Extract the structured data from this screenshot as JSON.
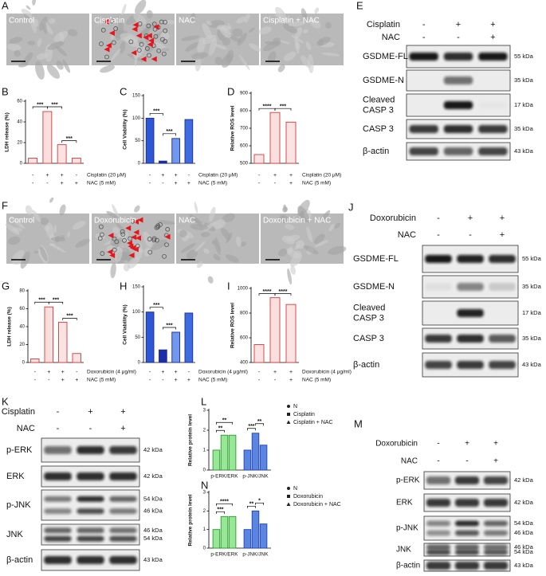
{
  "micrographs": [
    {
      "letter": "A",
      "images": [
        "Control",
        "Cisplatin",
        "NAC",
        "Cisplatin + NAC"
      ]
    },
    {
      "letter": "F",
      "images": [
        "Control",
        "Doxorubicin",
        "NAC",
        "Doxorubicin + NAC"
      ]
    }
  ],
  "charts": [
    {
      "letter": "B",
      "type": "bar",
      "y_label": "LDH release (%)",
      "values": [
        5,
        50,
        18,
        5
      ],
      "colors": [
        "#fbe3e3",
        "#fbdede",
        "#fbe3e3",
        "#fbe3e3"
      ],
      "edge": "#d43a3a",
      "ylim": [
        0,
        60
      ],
      "yticks": [
        0,
        20,
        40,
        60
      ],
      "significance": [
        "***",
        "***",
        "***"
      ],
      "conditions": [
        {
          "label": "Cisplatin (20 μM)",
          "signs": [
            "-",
            "+",
            "+",
            "-"
          ]
        },
        {
          "label": "NAC (5 mM)",
          "signs": [
            "-",
            "-",
            "+",
            "+"
          ]
        }
      ]
    },
    {
      "letter": "C",
      "type": "bar",
      "y_label": "Cell Viability (%)",
      "values": [
        100,
        5,
        55,
        97
      ],
      "colors": [
        "#2e57d6",
        "#1c2fa8",
        "#7098ef",
        "#3d6ce0"
      ],
      "edge": "#1a2a90",
      "ylim": [
        0,
        150
      ],
      "yticks": [
        0,
        50,
        100,
        150
      ],
      "significance": [
        "***",
        "***"
      ],
      "conditions": [
        {
          "label": "Cisplatin (20 μM)",
          "signs": [
            "-",
            "+",
            "+",
            "-"
          ]
        },
        {
          "label": "NAC (5 mM)",
          "signs": [
            "-",
            "-",
            "+",
            "+"
          ]
        }
      ]
    },
    {
      "letter": "D",
      "type": "bar",
      "y_label": "Relative ROS level",
      "values": [
        550,
        790,
        735
      ],
      "colors": [
        "#fbe3e3",
        "#fbdede",
        "#fbe3e3"
      ],
      "edge": "#d43a3a",
      "ylim": [
        500,
        900
      ],
      "yticks": [
        500,
        600,
        700,
        800,
        900
      ],
      "significance": [
        "****",
        "***"
      ],
      "conditions": [
        {
          "label": "Cisplatin (20 μM)",
          "signs": [
            "-",
            "+",
            "+"
          ]
        },
        {
          "label": "NAC (5 mM)",
          "signs": [
            "-",
            "-",
            "+"
          ]
        }
      ]
    },
    {
      "letter": "G",
      "type": "bar",
      "y_label": "LDH release (%)",
      "values": [
        4,
        62,
        45,
        10
      ],
      "colors": [
        "#fbe3e3",
        "#fbdede",
        "#fbe3e3",
        "#fbe3e3"
      ],
      "edge": "#d43a3a",
      "ylim": [
        0,
        80
      ],
      "yticks": [
        0,
        20,
        40,
        60,
        80
      ],
      "significance": [
        "***",
        "***",
        "***"
      ],
      "conditions": [
        {
          "label": "Doxorubicin (4 μg/ml)",
          "signs": [
            "-",
            "+",
            "+",
            "-"
          ]
        },
        {
          "label": "NAC (5 mM)",
          "signs": [
            "-",
            "-",
            "+",
            "+"
          ]
        }
      ]
    },
    {
      "letter": "H",
      "type": "bar",
      "y_label": "Cell Viability (%)",
      "values": [
        100,
        25,
        60,
        98
      ],
      "colors": [
        "#2e57d6",
        "#1c2fa8",
        "#7098ef",
        "#3d6ce0"
      ],
      "edge": "#1a2a90",
      "ylim": [
        0,
        150
      ],
      "yticks": [
        0,
        50,
        100,
        150
      ],
      "significance": [
        "***",
        "***"
      ],
      "conditions": [
        {
          "label": "Doxorubicin (4 μg/ml)",
          "signs": [
            "-",
            "+",
            "+",
            "-"
          ]
        },
        {
          "label": "NAC (5 mM)",
          "signs": [
            "-",
            "-",
            "+",
            "+"
          ]
        }
      ]
    },
    {
      "letter": "I",
      "type": "bar",
      "y_label": "Relative ROS level",
      "values": [
        545,
        925,
        870
      ],
      "colors": [
        "#fbe3e3",
        "#fbdede",
        "#fbe3e3"
      ],
      "edge": "#d43a3a",
      "ylim": [
        400,
        1000
      ],
      "yticks": [
        400,
        600,
        800,
        1000
      ],
      "significance": [
        "****",
        "****"
      ],
      "conditions": [
        {
          "label": "Doxorubicin (4 μg/ml)",
          "signs": [
            "-",
            "+",
            "+"
          ]
        },
        {
          "label": "NAC (5 mM)",
          "signs": [
            "-",
            "-",
            "+"
          ]
        }
      ]
    },
    {
      "letter": "L",
      "type": "grouped-bar",
      "y_label": "Relative protein level",
      "categories": [
        "p-ERK/ERK",
        "p-JNK/JNK"
      ],
      "colors": [
        "#98e698",
        "#5b86e0"
      ],
      "edges": [
        "#2c9a2c",
        "#1f3fbf"
      ],
      "series": [
        {
          "name": "N",
          "values": [
            1,
            1
          ]
        },
        {
          "name": "Cisplatin",
          "values": [
            1.75,
            1.85
          ]
        },
        {
          "name": "Cisplatin + NAC",
          "values": [
            1.75,
            1.25
          ]
        }
      ],
      "ylim": [
        0,
        3
      ],
      "yticks": [
        0,
        1,
        2,
        3
      ],
      "significance": [
        "**",
        "**",
        "***",
        "**"
      ]
    },
    {
      "letter": "N",
      "type": "grouped-bar",
      "y_label": "Relative protein level",
      "categories": [
        "p-ERK/ERK",
        "p-JNK/JNK"
      ],
      "colors": [
        "#98e698",
        "#5b86e0"
      ],
      "edges": [
        "#2c9a2c",
        "#1f3fbf"
      ],
      "series": [
        {
          "name": "N",
          "values": [
            1,
            1
          ]
        },
        {
          "name": "Doxorubicin",
          "values": [
            1.7,
            2.0
          ]
        },
        {
          "name": "Doxorubicin + NAC",
          "values": [
            1.7,
            1.3
          ]
        }
      ],
      "ylim": [
        0,
        3
      ],
      "yticks": [
        0,
        1,
        2,
        3
      ],
      "significance": [
        "***",
        "****",
        "**",
        "*"
      ]
    }
  ],
  "blots": [
    {
      "letter": "E",
      "treatments": [
        {
          "name": "Cisplatin",
          "signs": [
            "-",
            "+",
            "+"
          ]
        },
        {
          "name": "NAC",
          "signs": [
            "-",
            "-",
            "+"
          ]
        }
      ],
      "rows": [
        {
          "name": [
            "GSDME-FL"
          ],
          "markers": [
            "55 kDa"
          ]
        },
        {
          "name": [
            "GSDME-N"
          ],
          "markers": [
            "35 kDa"
          ]
        },
        {
          "name": [
            "Cleaved",
            "CASP 3"
          ],
          "markers": [
            "17 kDa"
          ]
        },
        {
          "name": [
            "CASP 3"
          ],
          "markers": [
            "35 kDa"
          ]
        },
        {
          "name": [
            "β-actin"
          ],
          "markers": [
            "43 kDa"
          ]
        }
      ]
    },
    {
      "letter": "J",
      "treatments": [
        {
          "name": "Doxorubicin",
          "signs": [
            "-",
            "+",
            "+"
          ]
        },
        {
          "name": "NAC",
          "signs": [
            "-",
            "-",
            "+"
          ]
        }
      ],
      "rows": [
        {
          "name": [
            "GSDME-FL"
          ],
          "markers": [
            "55 kDa"
          ]
        },
        {
          "name": [
            "GSDME-N"
          ],
          "markers": [
            "35 kDa"
          ]
        },
        {
          "name": [
            "Cleaved",
            "CASP 3"
          ],
          "markers": [
            "17 kDa"
          ]
        },
        {
          "name": [
            "CASP 3"
          ],
          "markers": [
            "35 kDa"
          ]
        },
        {
          "name": [
            "β-actin"
          ],
          "markers": [
            "43 kDa"
          ]
        }
      ]
    },
    {
      "letter": "K",
      "treatments": [
        {
          "name": "Cisplatin",
          "signs": [
            "-",
            "+",
            "+"
          ]
        },
        {
          "name": "NAC",
          "signs": [
            "-",
            "-",
            "+"
          ]
        }
      ],
      "rows": [
        {
          "name": [
            "p-ERK"
          ],
          "markers": [
            "42 kDa"
          ]
        },
        {
          "name": [
            "ERK"
          ],
          "markers": [
            "42 kDa"
          ]
        },
        {
          "name": [
            "p-JNK"
          ],
          "markers": [
            "54 kDa",
            "46 kDa"
          ]
        },
        {
          "name": [
            "JNK"
          ],
          "markers": [
            "46 kDa",
            "54 kDa"
          ]
        },
        {
          "name": [
            "β-actin"
          ],
          "markers": [
            "43 kDa"
          ]
        }
      ]
    },
    {
      "letter": "M",
      "treatments": [
        {
          "name": "Doxorubicin",
          "signs": [
            "-",
            "+",
            "+"
          ]
        },
        {
          "name": "NAC",
          "signs": [
            "-",
            "-",
            "+"
          ]
        }
      ],
      "rows": [
        {
          "name": [
            "p-ERK"
          ],
          "markers": [
            "42 kDa"
          ]
        },
        {
          "name": [
            "ERK"
          ],
          "markers": [
            "42 kDa"
          ]
        },
        {
          "name": [
            "p-JNK"
          ],
          "markers": [
            "54 kDa",
            "46 kDa"
          ]
        },
        {
          "name": [
            "JNK"
          ],
          "markers": [
            "46 kDa",
            "54 kDa"
          ]
        },
        {
          "name": [
            "β-actin"
          ],
          "markers": [
            "43 kDa"
          ]
        }
      ]
    }
  ]
}
